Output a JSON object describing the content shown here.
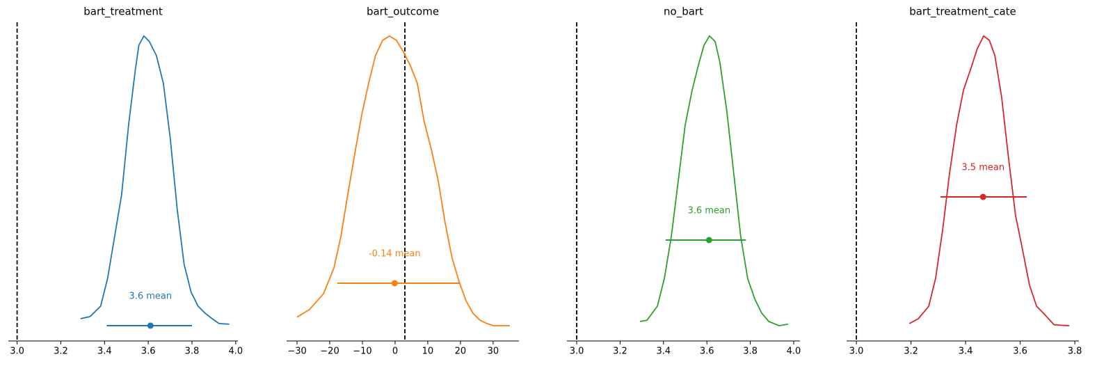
{
  "chart_data": [
    {
      "type": "density",
      "title": "bart_treatment",
      "color": "#1f77b4",
      "x": [
        3.29,
        3.334,
        3.382,
        3.414,
        3.446,
        3.478,
        3.51,
        3.541,
        3.557,
        3.58,
        3.605,
        3.637,
        3.669,
        3.701,
        3.732,
        3.764,
        3.796,
        3.828,
        3.86,
        3.892,
        3.924,
        3.971
      ],
      "values": [
        0.073,
        0.08,
        0.114,
        0.205,
        0.342,
        0.479,
        0.708,
        0.89,
        0.97,
        1.0,
        0.982,
        0.936,
        0.845,
        0.662,
        0.434,
        0.251,
        0.16,
        0.114,
        0.091,
        0.073,
        0.057,
        0.055
      ],
      "mean": 3.61,
      "mean_label": "3.6 mean",
      "hdi": [
        3.41,
        3.8
      ],
      "ref_val": 3.0,
      "xlim": [
        2.96,
        4.01
      ],
      "ylim": [
        0,
        1.045
      ],
      "xticks": [
        {
          "value": 3.0,
          "label": "3.0"
        },
        3.2,
        3.4,
        3.6,
        3.8,
        {
          "value": 4.0,
          "label": "4.0"
        }
      ]
    },
    {
      "type": "density",
      "title": "bart_outcome",
      "color": "#ff7f0e",
      "x": [
        -30,
        -26.2,
        -21.9,
        -18.7,
        -16.6,
        -14.5,
        -12.3,
        -10.2,
        -8.1,
        -6.0,
        -3.8,
        -1.7,
        0.4,
        2.6,
        4.7,
        6.8,
        8.9,
        11.1,
        13.2,
        15.3,
        17.4,
        19.6,
        21.7,
        23.8,
        26.0,
        28.1,
        30.2,
        35.1
      ],
      "values": [
        0.078,
        0.103,
        0.155,
        0.24,
        0.342,
        0.479,
        0.616,
        0.742,
        0.845,
        0.936,
        0.986,
        1.0,
        0.986,
        0.947,
        0.902,
        0.845,
        0.719,
        0.628,
        0.525,
        0.388,
        0.274,
        0.194,
        0.132,
        0.091,
        0.068,
        0.057,
        0.05,
        0.05
      ],
      "mean": -0.14,
      "mean_label": "-0.14 mean",
      "hdi": [
        -17.7,
        19.8
      ],
      "ref_val": 3.0,
      "xlim": [
        -33.2,
        37.9
      ],
      "ylim": [
        0,
        1.045
      ],
      "xticks": [
        {
          "value": -30,
          "label": "−30"
        },
        {
          "value": -20,
          "label": "−20"
        },
        {
          "value": -10,
          "label": "−10"
        },
        0,
        10,
        20,
        30
      ]
    },
    {
      "type": "density",
      "title": "no_bart",
      "color": "#2ca02c",
      "x": [
        3.292,
        3.324,
        3.372,
        3.404,
        3.436,
        3.468,
        3.5,
        3.532,
        3.564,
        3.587,
        3.612,
        3.638,
        3.66,
        3.692,
        3.724,
        3.756,
        3.788,
        3.821,
        3.853,
        3.885,
        3.933,
        3.974
      ],
      "values": [
        0.064,
        0.068,
        0.114,
        0.205,
        0.342,
        0.525,
        0.708,
        0.822,
        0.913,
        0.97,
        1.0,
        0.982,
        0.913,
        0.753,
        0.548,
        0.342,
        0.205,
        0.137,
        0.091,
        0.064,
        0.05,
        0.055
      ],
      "mean": 3.61,
      "mean_label": "3.6 mean",
      "hdi": [
        3.41,
        3.78
      ],
      "ref_val": 3.0,
      "xlim": [
        2.955,
        4.029
      ],
      "ylim": [
        0,
        1.045
      ],
      "xticks": [
        {
          "value": 3.0,
          "label": "3.0"
        },
        3.2,
        3.4,
        3.6,
        3.8,
        {
          "value": 4.0,
          "label": "4.0"
        }
      ]
    },
    {
      "type": "density",
      "title": "bart_treatment_cate",
      "color": "#d62728",
      "x": [
        3.194,
        3.227,
        3.265,
        3.29,
        3.316,
        3.341,
        3.367,
        3.392,
        3.418,
        3.443,
        3.466,
        3.487,
        3.507,
        3.532,
        3.558,
        3.583,
        3.609,
        3.634,
        3.66,
        3.685,
        3.724,
        3.78
      ],
      "values": [
        0.057,
        0.073,
        0.114,
        0.205,
        0.365,
        0.548,
        0.708,
        0.822,
        0.89,
        0.959,
        1.0,
        0.986,
        0.936,
        0.799,
        0.594,
        0.411,
        0.297,
        0.183,
        0.114,
        0.091,
        0.053,
        0.05
      ],
      "mean": 3.464,
      "mean_label": "3.5 mean",
      "hdi": [
        3.308,
        3.624
      ],
      "ref_val": 3.0,
      "xlim": [
        2.964,
        3.815
      ],
      "ylim": [
        0,
        1.045
      ],
      "xticks": [
        {
          "value": 3.0,
          "label": "3.0"
        },
        3.2,
        3.4,
        3.6,
        3.8
      ]
    }
  ]
}
